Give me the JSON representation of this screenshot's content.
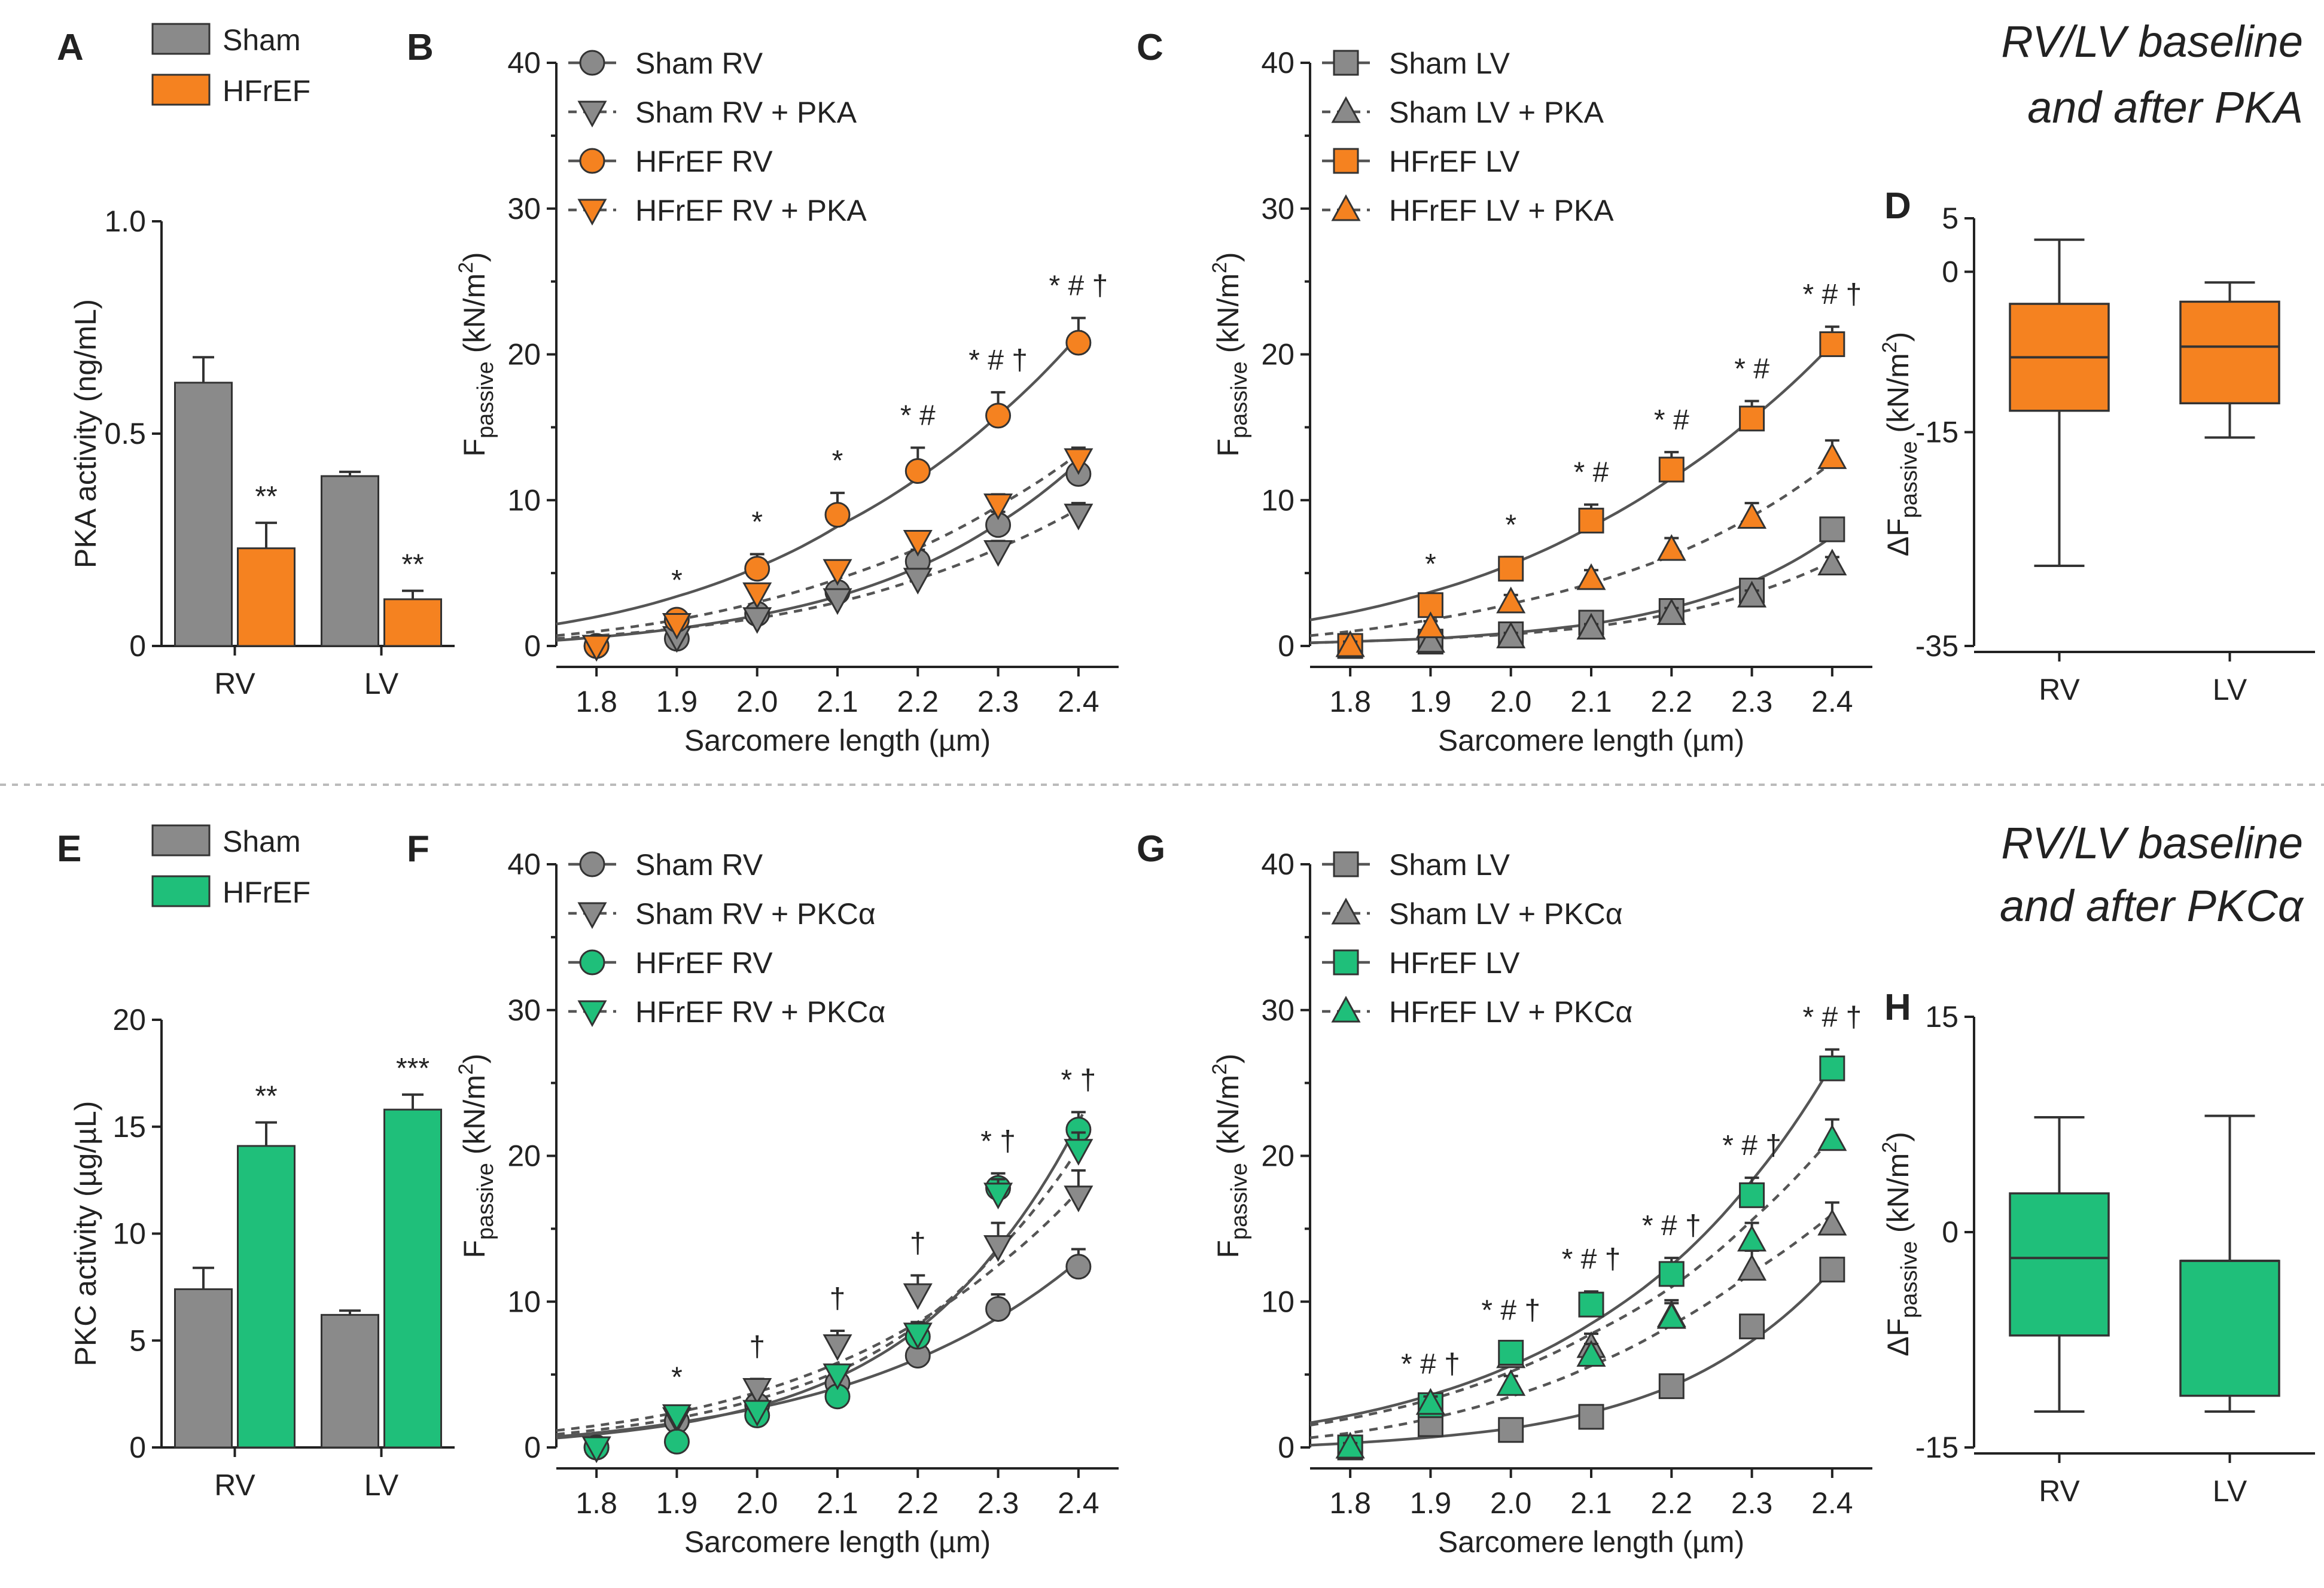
{
  "colors": {
    "sham": "#8a8a8a",
    "pka": "#f58220",
    "pkc": "#1fbf7a",
    "edge": "#333333"
  },
  "title_top": [
    "RV/LV baseline",
    "and after PKA"
  ],
  "title_bottom": [
    "RV/LV baseline",
    "and after PKCα"
  ],
  "chart_data": [
    {
      "id": "A",
      "type": "bar",
      "label": "A",
      "ylabel": "PKA activity (ng/mL)",
      "ylim": [
        0,
        1.0
      ],
      "yticks": [
        "0",
        "0.5",
        "1.0"
      ],
      "ytick_values": [
        0,
        0.5,
        1.0
      ],
      "categories": [
        "RV",
        "LV"
      ],
      "legend": [
        "Sham",
        "HFrEF"
      ],
      "series": [
        {
          "name": "Sham",
          "values": [
            0.62,
            0.4
          ],
          "errors": [
            0.06,
            0.01
          ]
        },
        {
          "name": "HFrEF",
          "values": [
            0.23,
            0.11
          ],
          "errors": [
            0.06,
            0.02
          ]
        }
      ],
      "annotations": [
        "**",
        "**"
      ]
    },
    {
      "id": "B",
      "type": "line",
      "label": "B",
      "xlabel": "Sarcomere length (µm)",
      "ylabel_main": "F",
      "ylabel_sub": "passive",
      "ylabel_unit": " (kN/m",
      "ylabel_end": ")",
      "xlim": [
        1.75,
        2.45
      ],
      "ylim": [
        0,
        40
      ],
      "x": [
        1.8,
        1.9,
        2.0,
        2.1,
        2.2,
        2.3,
        2.4
      ],
      "xticks": [
        "1.8",
        "1.9",
        "2.0",
        "2.1",
        "2.2",
        "2.3",
        "2.4"
      ],
      "yticks": [
        "0",
        "10",
        "20",
        "30",
        "40"
      ],
      "series": [
        {
          "name": "Sham RV",
          "marker": "circle",
          "color": "sham",
          "line": "solid",
          "values": [
            0,
            0.5,
            2.2,
            3.7,
            5.8,
            8.3,
            11.8
          ],
          "errors": [
            0.3,
            0.4,
            0.5,
            0.6,
            0.8,
            0.9,
            1.0
          ]
        },
        {
          "name": "Sham RV + PKA",
          "marker": "tri-down",
          "color": "sham",
          "line": "dash",
          "values": [
            0,
            0.6,
            1.9,
            3.2,
            4.6,
            6.5,
            9.0
          ],
          "errors": [
            0.3,
            0.4,
            0.4,
            0.5,
            0.6,
            0.7,
            0.8
          ]
        },
        {
          "name": "HFrEF RV",
          "marker": "circle",
          "color": "pka",
          "line": "solid",
          "values": [
            0,
            1.8,
            5.3,
            9.0,
            12.0,
            15.8,
            20.8
          ],
          "errors": [
            0.3,
            0.5,
            1.0,
            1.5,
            1.6,
            1.6,
            1.7
          ]
        },
        {
          "name": "HFrEF RV + PKA",
          "marker": "tri-down",
          "color": "pka",
          "line": "dash",
          "values": [
            0,
            1.5,
            3.6,
            5.2,
            7.2,
            9.7,
            12.8
          ],
          "errors": [
            0.3,
            0.4,
            0.5,
            0.6,
            0.6,
            0.7,
            0.8
          ]
        }
      ],
      "fits": [
        {
          "color": "sham",
          "line": "solid",
          "values": [
            0.6,
            1.2,
            2.1,
            3.4,
            5.4,
            8.4,
            12.6
          ]
        },
        {
          "color": "sham",
          "line": "dash",
          "values": [
            0.7,
            1.2,
            1.9,
            3.0,
            4.6,
            6.7,
            9.4
          ]
        },
        {
          "color": "pka",
          "line": "solid",
          "values": [
            2.0,
            3.4,
            5.4,
            8.2,
            11.5,
            15.8,
            21.3
          ]
        },
        {
          "color": "pka",
          "line": "dash",
          "values": [
            1.0,
            1.8,
            3.0,
            4.6,
            6.7,
            9.6,
            13.2
          ]
        }
      ],
      "sig_marks": [
        "",
        "*",
        "*",
        "*",
        "* #",
        "* # †",
        "* # †"
      ]
    },
    {
      "id": "C",
      "type": "line",
      "label": "C",
      "xlabel": "Sarcomere length (µm)",
      "ylabel_main": "F",
      "ylabel_sub": "passive",
      "ylabel_unit": " (kN/m",
      "ylabel_end": ")",
      "xlim": [
        1.75,
        2.45
      ],
      "ylim": [
        0,
        40
      ],
      "x": [
        1.8,
        1.9,
        2.0,
        2.1,
        2.2,
        2.3,
        2.4
      ],
      "xticks": [
        "1.8",
        "1.9",
        "2.0",
        "2.1",
        "2.2",
        "2.3",
        "2.4"
      ],
      "yticks": [
        "0",
        "10",
        "20",
        "30",
        "40"
      ],
      "series": [
        {
          "name": "Sham LV",
          "marker": "square",
          "color": "sham",
          "line": "solid",
          "values": [
            0,
            0.3,
            0.8,
            1.6,
            2.4,
            3.8,
            8.0
          ],
          "errors": [
            0.2,
            0.3,
            0.3,
            0.4,
            0.4,
            0.5,
            0.6
          ]
        },
        {
          "name": "Sham LV + PKA",
          "marker": "triangle",
          "color": "sham",
          "line": "dash",
          "values": [
            0,
            0.3,
            0.6,
            1.2,
            2.2,
            3.4,
            5.6
          ],
          "errors": [
            0.2,
            0.3,
            0.3,
            0.3,
            0.4,
            0.4,
            0.5
          ]
        },
        {
          "name": "HFrEF LV",
          "marker": "square",
          "color": "pka",
          "line": "solid",
          "values": [
            0,
            2.8,
            5.3,
            8.6,
            12.1,
            15.6,
            20.7
          ],
          "errors": [
            0.3,
            0.6,
            0.8,
            1.1,
            1.2,
            1.2,
            1.2
          ]
        },
        {
          "name": "HFrEF LV + PKA",
          "marker": "triangle",
          "color": "pka",
          "line": "dash",
          "values": [
            0,
            1.3,
            3.0,
            4.6,
            6.6,
            8.8,
            12.9
          ],
          "errors": [
            0.3,
            0.4,
            0.5,
            0.6,
            0.8,
            1.0,
            1.2
          ]
        }
      ],
      "fits": [
        {
          "color": "sham",
          "line": "solid",
          "values": [
            0.3,
            0.5,
            0.9,
            1.5,
            2.6,
            4.4,
            7.5
          ]
        },
        {
          "color": "sham",
          "line": "dash",
          "values": [
            0.3,
            0.5,
            0.8,
            1.3,
            2.2,
            3.6,
            5.8
          ]
        },
        {
          "color": "pka",
          "line": "solid",
          "values": [
            2.3,
            3.7,
            5.6,
            8.2,
            11.5,
            15.6,
            20.7
          ]
        },
        {
          "color": "pka",
          "line": "dash",
          "values": [
            1.0,
            1.8,
            2.9,
            4.3,
            6.2,
            8.9,
            12.6
          ]
        }
      ],
      "sig_marks": [
        "",
        "*",
        "*",
        "* #",
        "* #",
        "* #",
        "* # †"
      ]
    },
    {
      "id": "D",
      "type": "box",
      "label": "D",
      "ylabel_main": "ΔF",
      "ylabel_sub": "passive",
      "ylabel_unit": " (kN/m",
      "ylabel_end": ")",
      "ylim": [
        -35,
        5
      ],
      "yticks": [
        "5",
        "0",
        "-15",
        "-35"
      ],
      "ytick_values": [
        5,
        0,
        -15,
        -35
      ],
      "categories": [
        "RV",
        "LV"
      ],
      "boxes": [
        {
          "min": -27.5,
          "q1": -13.0,
          "median": -8.0,
          "q3": -3.0,
          "max": 3.0
        },
        {
          "min": -15.5,
          "q1": -12.3,
          "median": -7.0,
          "q3": -2.8,
          "max": -1.0
        }
      ],
      "color": "pka"
    },
    {
      "id": "E",
      "type": "bar",
      "label": "E",
      "ylabel": "PKC activity (µg/µL)",
      "ylim": [
        0,
        20
      ],
      "yticks": [
        "0",
        "5",
        "10",
        "15",
        "20"
      ],
      "ytick_values": [
        0,
        5,
        10,
        15,
        20
      ],
      "categories": [
        "RV",
        "LV"
      ],
      "legend": [
        "Sham",
        "HFrEF"
      ],
      "series": [
        {
          "name": "Sham",
          "values": [
            7.4,
            6.2
          ],
          "errors": [
            1.0,
            0.2
          ]
        },
        {
          "name": "HFrEF",
          "values": [
            14.1,
            15.8
          ],
          "errors": [
            1.1,
            0.7
          ]
        }
      ],
      "annotations": [
        "**",
        "***"
      ]
    },
    {
      "id": "F",
      "type": "line",
      "label": "F",
      "xlabel": "Sarcomere length (µm)",
      "ylabel_main": "F",
      "ylabel_sub": "passive",
      "ylabel_unit": " (kN/m",
      "ylabel_end": ")",
      "xlim": [
        1.75,
        2.45
      ],
      "ylim": [
        0,
        40
      ],
      "x": [
        1.8,
        1.9,
        2.0,
        2.1,
        2.2,
        2.3,
        2.4
      ],
      "xticks": [
        "1.8",
        "1.9",
        "2.0",
        "2.1",
        "2.2",
        "2.3",
        "2.4"
      ],
      "yticks": [
        "0",
        "10",
        "20",
        "30",
        "40"
      ],
      "series": [
        {
          "name": "Sham RV",
          "marker": "circle",
          "color": "sham",
          "line": "solid",
          "values": [
            0,
            1.8,
            2.9,
            4.4,
            6.3,
            9.5,
            12.4
          ],
          "errors": [
            0.3,
            0.4,
            0.5,
            0.6,
            0.8,
            1.0,
            1.2
          ]
        },
        {
          "name": "Sham RV + PKCα",
          "marker": "tri-down",
          "color": "sham",
          "line": "dash",
          "values": [
            0,
            2.0,
            4.0,
            7.0,
            10.5,
            13.8,
            17.2
          ],
          "errors": [
            0.3,
            0.5,
            0.7,
            1.0,
            1.3,
            1.6,
            1.8
          ]
        },
        {
          "name": "HFrEF RV",
          "marker": "circle",
          "color": "pkc",
          "line": "solid",
          "values": [
            0,
            0.4,
            2.2,
            3.5,
            7.6,
            17.8,
            21.8
          ],
          "errors": [
            0.3,
            0.4,
            0.5,
            0.6,
            0.8,
            1.0,
            1.2
          ]
        },
        {
          "name": "HFrEF RV + PKCα",
          "marker": "tri-down",
          "color": "pkc",
          "line": "dash",
          "values": [
            0,
            2.2,
            2.5,
            5.0,
            7.8,
            17.4,
            20.4
          ],
          "errors": [
            0.3,
            0.4,
            0.5,
            0.6,
            0.8,
            1.0,
            1.2
          ]
        }
      ],
      "fits": [
        {
          "color": "sham",
          "line": "solid",
          "values": [
            1.0,
            1.7,
            2.7,
            4.1,
            6.1,
            8.9,
            12.8
          ]
        },
        {
          "color": "sham",
          "line": "dash",
          "values": [
            1.5,
            2.4,
            3.8,
            5.8,
            8.6,
            12.5,
            17.6
          ]
        },
        {
          "color": "pkc",
          "line": "solid",
          "values": [
            0.9,
            1.6,
            2.8,
            4.8,
            8.1,
            13.7,
            22.3
          ]
        },
        {
          "color": "pkc",
          "line": "dash",
          "values": [
            1.2,
            2.0,
            3.3,
            5.2,
            8.4,
            13.5,
            20.5
          ]
        }
      ],
      "sig_marks": [
        "",
        "*",
        "†",
        "†",
        "†",
        "* †",
        "* †"
      ]
    },
    {
      "id": "G",
      "type": "line",
      "label": "G",
      "xlabel": "Sarcomere length (µm)",
      "ylabel_main": "F",
      "ylabel_sub": "passive",
      "ylabel_unit": " (kN/m",
      "ylabel_end": ")",
      "xlim": [
        1.75,
        2.45
      ],
      "ylim": [
        0,
        40
      ],
      "x": [
        1.8,
        1.9,
        2.0,
        2.1,
        2.2,
        2.3,
        2.4
      ],
      "xticks": [
        "1.8",
        "1.9",
        "2.0",
        "2.1",
        "2.2",
        "2.3",
        "2.4"
      ],
      "yticks": [
        "0",
        "10",
        "20",
        "30",
        "40"
      ],
      "series": [
        {
          "name": "Sham LV",
          "marker": "square",
          "color": "sham",
          "line": "solid",
          "values": [
            0,
            1.6,
            1.2,
            2.1,
            4.2,
            8.3,
            12.2
          ],
          "errors": [
            0.3,
            0.4,
            0.4,
            0.5,
            0.6,
            0.7,
            0.8
          ]
        },
        {
          "name": "Sham LV + PKCα",
          "marker": "triangle",
          "color": "sham",
          "line": "dash",
          "values": [
            0,
            3.0,
            6.2,
            6.9,
            9.0,
            12.2,
            15.3
          ],
          "errors": [
            0.3,
            0.5,
            0.7,
            0.9,
            1.1,
            1.3,
            1.5
          ]
        },
        {
          "name": "HFrEF LV",
          "marker": "square",
          "color": "pkc",
          "line": "solid",
          "values": [
            0,
            2.9,
            6.5,
            9.8,
            11.9,
            17.3,
            26.0
          ],
          "errors": [
            0.3,
            0.5,
            0.7,
            0.9,
            1.1,
            1.2,
            1.3
          ]
        },
        {
          "name": "HFrEF LV + PKCα",
          "marker": "triangle",
          "color": "pkc",
          "line": "dash",
          "values": [
            0,
            3.0,
            4.3,
            6.3,
            8.9,
            14.2,
            21.1
          ],
          "errors": [
            0.3,
            0.5,
            0.6,
            0.8,
            1.0,
            1.2,
            1.4
          ]
        }
      ],
      "fits": [
        {
          "color": "sham",
          "line": "solid",
          "values": [
            0.3,
            0.7,
            1.3,
            2.4,
            4.2,
            7.3,
            12.2
          ]
        },
        {
          "color": "sham",
          "line": "dash",
          "values": [
            1.0,
            2.0,
            3.5,
            5.6,
            8.4,
            12.0,
            16.0
          ]
        },
        {
          "color": "pkc",
          "line": "solid",
          "values": [
            2.2,
            3.6,
            5.6,
            8.5,
            12.5,
            18.3,
            26.3
          ]
        },
        {
          "color": "pkc",
          "line": "dash",
          "values": [
            2.0,
            3.3,
            5.2,
            7.8,
            11.0,
            15.6,
            21.3
          ]
        }
      ],
      "sig_marks": [
        "",
        "* # †",
        "* # †",
        "* # †",
        "* # †",
        "* # †",
        "* # †"
      ]
    },
    {
      "id": "H",
      "type": "box",
      "label": "H",
      "ylabel_main": "ΔF",
      "ylabel_sub": "passive",
      "ylabel_unit": " (kN/m",
      "ylabel_end": ")",
      "ylim": [
        -15,
        15
      ],
      "yticks": [
        "15",
        "0",
        "-15"
      ],
      "ytick_values": [
        15,
        0,
        -15
      ],
      "categories": [
        "RV",
        "LV"
      ],
      "boxes": [
        {
          "min": -12.5,
          "q1": -7.2,
          "median": -1.8,
          "q3": 2.7,
          "max": 8.0
        },
        {
          "min": -12.5,
          "q1": -11.4,
          "median": -2.0,
          "q3": -2.0,
          "max": 8.1
        }
      ],
      "color": "pkc"
    }
  ]
}
